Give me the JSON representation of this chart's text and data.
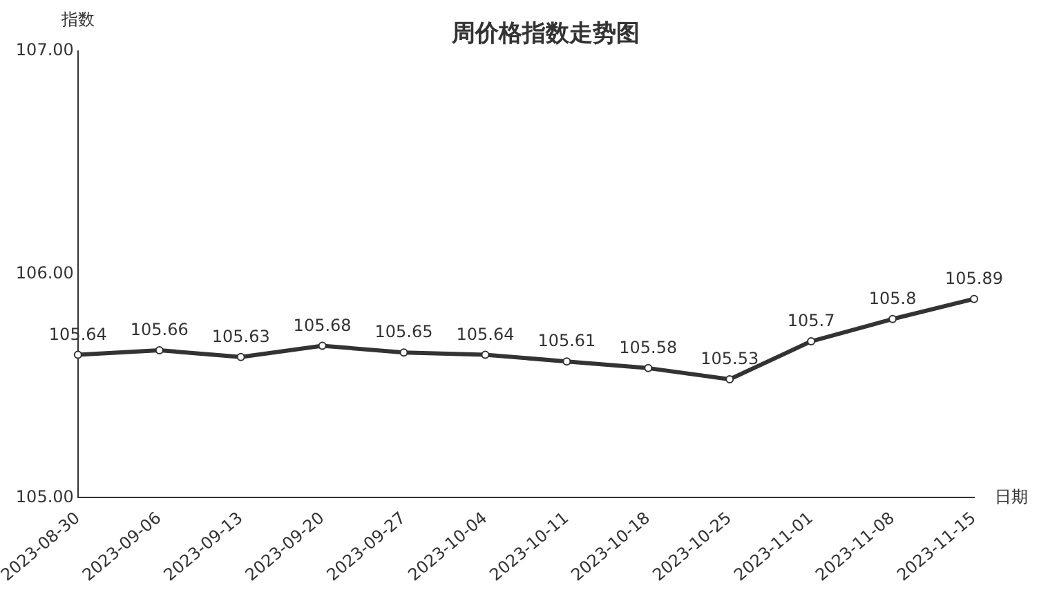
{
  "chart_data": {
    "type": "line",
    "title": "周价格指数走势图",
    "xlabel": "日期",
    "ylabel": "指数",
    "categories": [
      "2023-08-30",
      "2023-09-06",
      "2023-09-13",
      "2023-09-20",
      "2023-09-27",
      "2023-10-04",
      "2023-10-11",
      "2023-10-18",
      "2023-10-25",
      "2023-11-01",
      "2023-11-08",
      "2023-11-15"
    ],
    "series": [
      {
        "color": "#333333",
        "values": [
          105.64,
          105.66,
          105.63,
          105.68,
          105.65,
          105.64,
          105.61,
          105.58,
          105.53,
          105.7,
          105.8,
          105.89
        ]
      }
    ],
    "ylim": [
      105,
      107
    ],
    "yticks": [
      {
        "value": 105,
        "label": "105.00"
      },
      {
        "value": 106,
        "label": "106.00"
      },
      {
        "value": 107,
        "label": "107.00"
      }
    ],
    "grid": false,
    "legend": false,
    "marker": "circle",
    "line_style": "solid",
    "data_labels": true
  }
}
